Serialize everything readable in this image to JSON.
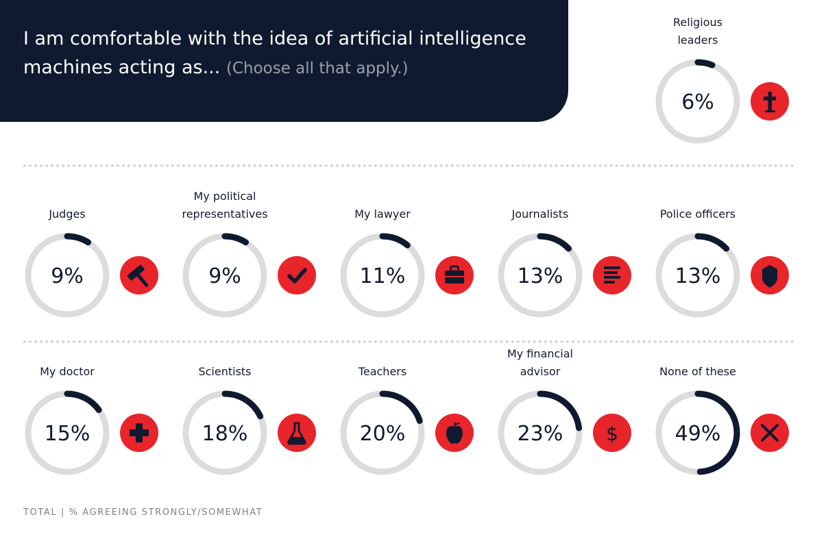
{
  "header": {
    "title": "I am comfortable with the idea of artificial intelligence machines acting as...",
    "subtitle": "(Choose all that apply.)"
  },
  "footer": {
    "note": "TOTAL  |  % AGREEING STRONGLY/SOMEWHAT"
  },
  "colors": {
    "navy": "#0f1a30",
    "ring_track": "#dcdcdc",
    "icon_red": "#e8252a"
  },
  "chart_data": {
    "type": "donut",
    "title": "I am comfortable with the idea of artificial intelligence machines acting as... (Choose all that apply.)",
    "unit": "%",
    "categories": [
      "Religious leaders",
      "Judges",
      "My political representatives",
      "My lawyer",
      "Journalists",
      "Police officers",
      "My doctor",
      "Scientists",
      "Teachers",
      "My financial advisor",
      "None of these"
    ],
    "values": [
      6,
      9,
      9,
      11,
      13,
      13,
      15,
      18,
      20,
      23,
      49
    ],
    "items": [
      {
        "label": "Religious leaders",
        "value": 6,
        "display": "6%",
        "icon": "cross-icon"
      },
      {
        "label": "Judges",
        "value": 9,
        "display": "9%",
        "icon": "gavel-icon"
      },
      {
        "label": "My political representatives",
        "value": 9,
        "display": "9%",
        "icon": "checkmark-icon"
      },
      {
        "label": "My lawyer",
        "value": 11,
        "display": "11%",
        "icon": "briefcase-icon"
      },
      {
        "label": "Journalists",
        "value": 13,
        "display": "13%",
        "icon": "newspaper-icon"
      },
      {
        "label": "Police officers",
        "value": 13,
        "display": "13%",
        "icon": "badge-shield-icon"
      },
      {
        "label": "My doctor",
        "value": 15,
        "display": "15%",
        "icon": "medical-cross-icon"
      },
      {
        "label": "Scientists",
        "value": 18,
        "display": "18%",
        "icon": "flask-icon"
      },
      {
        "label": "Teachers",
        "value": 20,
        "display": "20%",
        "icon": "apple-icon"
      },
      {
        "label": "My financial advisor",
        "value": 23,
        "display": "23%",
        "icon": "dollar-icon"
      },
      {
        "label": "None of these",
        "value": 49,
        "display": "49%",
        "icon": "x-icon"
      }
    ],
    "legend": "none",
    "grid": false
  }
}
